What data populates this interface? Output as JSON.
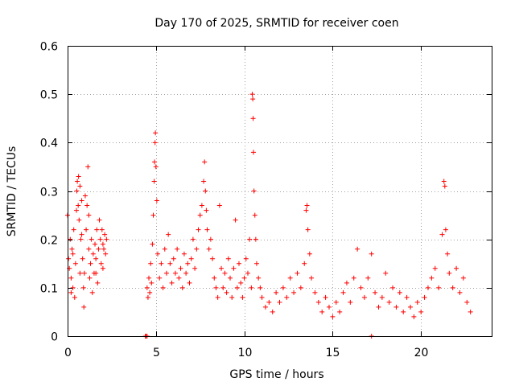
{
  "chart_data": {
    "type": "scatter",
    "title": "Day 170 of 2025, SRMTID for receiver coen",
    "xlabel": "GPS time / hours",
    "ylabel": "SRMTID / TECUs",
    "xlim": [
      0,
      24
    ],
    "ylim": [
      0,
      0.6
    ],
    "x_ticks": [
      0,
      5,
      10,
      15,
      20
    ],
    "x_tick_labels": [
      "0",
      "5",
      "10",
      "15",
      "20"
    ],
    "y_ticks": [
      0,
      0.1,
      0.2,
      0.3,
      0.4,
      0.5,
      0.6
    ],
    "y_tick_labels": [
      "0",
      "0.1",
      "0.2",
      "0.3",
      "0.4",
      "0.5",
      "0.6"
    ],
    "grid": true,
    "marker": "+",
    "color": "#ff0000",
    "series": [
      {
        "name": "SRMTID",
        "points": [
          [
            0.0,
            0.25
          ],
          [
            0.05,
            0.16
          ],
          [
            0.1,
            0.14
          ],
          [
            0.15,
            0.2
          ],
          [
            0.2,
            0.12
          ],
          [
            0.25,
            0.18
          ],
          [
            0.3,
            0.1
          ],
          [
            0.35,
            0.22
          ],
          [
            0.4,
            0.08
          ],
          [
            0.45,
            0.15
          ],
          [
            0.5,
            0.26
          ],
          [
            0.52,
            0.3
          ],
          [
            0.55,
            0.32
          ],
          [
            0.6,
            0.27
          ],
          [
            0.62,
            0.33
          ],
          [
            0.65,
            0.24
          ],
          [
            0.7,
            0.31
          ],
          [
            0.75,
            0.2
          ],
          [
            0.8,
            0.28
          ],
          [
            0.85,
            0.16
          ],
          [
            0.9,
            0.1
          ],
          [
            0.92,
            0.06
          ],
          [
            0.95,
            0.13
          ],
          [
            1.0,
            0.29
          ],
          [
            1.05,
            0.22
          ],
          [
            1.1,
            0.27
          ],
          [
            1.15,
            0.35
          ],
          [
            1.2,
            0.18
          ],
          [
            1.25,
            0.12
          ],
          [
            1.3,
            0.15
          ],
          [
            1.35,
            0.2
          ],
          [
            1.4,
            0.09
          ],
          [
            1.45,
            0.17
          ],
          [
            1.5,
            0.13
          ],
          [
            1.55,
            0.19
          ],
          [
            1.6,
            0.16
          ],
          [
            1.65,
            0.22
          ],
          [
            1.7,
            0.11
          ],
          [
            1.75,
            0.18
          ],
          [
            1.8,
            0.24
          ],
          [
            1.85,
            0.2
          ],
          [
            1.9,
            0.15
          ],
          [
            1.95,
            0.22
          ],
          [
            2.0,
            0.19
          ],
          [
            2.05,
            0.18
          ],
          [
            2.1,
            0.21
          ],
          [
            2.15,
            0.17
          ],
          [
            2.2,
            0.2
          ],
          [
            0.3,
            0.17
          ],
          [
            0.7,
            0.13
          ],
          [
            1.2,
            0.25
          ],
          [
            1.6,
            0.13
          ],
          [
            2.0,
            0.14
          ],
          [
            0.2,
            0.09
          ],
          [
            0.8,
            0.21
          ],
          [
            4.4,
            0.0
          ],
          [
            4.45,
            0.0
          ],
          [
            4.5,
            0.0
          ],
          [
            4.5,
            0.1
          ],
          [
            4.55,
            0.08
          ],
          [
            4.6,
            0.12
          ],
          [
            4.65,
            0.09
          ],
          [
            4.7,
            0.15
          ],
          [
            4.75,
            0.11
          ],
          [
            4.8,
            0.19
          ],
          [
            4.85,
            0.25
          ],
          [
            4.9,
            0.32
          ],
          [
            4.92,
            0.36
          ],
          [
            4.95,
            0.4
          ],
          [
            4.97,
            0.42
          ],
          [
            5.0,
            0.35
          ],
          [
            5.05,
            0.28
          ],
          [
            5.1,
            0.17
          ],
          [
            5.2,
            0.12
          ],
          [
            5.3,
            0.15
          ],
          [
            5.4,
            0.1
          ],
          [
            5.5,
            0.18
          ],
          [
            5.6,
            0.13
          ],
          [
            5.7,
            0.21
          ],
          [
            5.8,
            0.15
          ],
          [
            5.9,
            0.11
          ],
          [
            6.0,
            0.16
          ],
          [
            6.1,
            0.13
          ],
          [
            6.2,
            0.18
          ],
          [
            6.3,
            0.12
          ],
          [
            6.4,
            0.14
          ],
          [
            6.5,
            0.1
          ],
          [
            6.6,
            0.17
          ],
          [
            6.7,
            0.13
          ],
          [
            6.8,
            0.15
          ],
          [
            6.9,
            0.11
          ],
          [
            7.0,
            0.16
          ],
          [
            7.1,
            0.2
          ],
          [
            7.2,
            0.14
          ],
          [
            7.3,
            0.18
          ],
          [
            7.4,
            0.22
          ],
          [
            7.5,
            0.25
          ],
          [
            7.6,
            0.27
          ],
          [
            7.7,
            0.32
          ],
          [
            7.75,
            0.36
          ],
          [
            7.8,
            0.3
          ],
          [
            7.85,
            0.26
          ],
          [
            7.9,
            0.22
          ],
          [
            8.0,
            0.18
          ],
          [
            8.1,
            0.2
          ],
          [
            8.2,
            0.16
          ],
          [
            8.3,
            0.12
          ],
          [
            8.4,
            0.1
          ],
          [
            8.5,
            0.08
          ],
          [
            8.6,
            0.27
          ],
          [
            8.7,
            0.14
          ],
          [
            8.8,
            0.1
          ],
          [
            8.9,
            0.13
          ],
          [
            9.0,
            0.09
          ],
          [
            9.1,
            0.16
          ],
          [
            9.2,
            0.12
          ],
          [
            9.3,
            0.08
          ],
          [
            9.4,
            0.14
          ],
          [
            9.5,
            0.24
          ],
          [
            9.6,
            0.1
          ],
          [
            9.7,
            0.15
          ],
          [
            9.8,
            0.11
          ],
          [
            9.9,
            0.08
          ],
          [
            10.0,
            0.12
          ],
          [
            10.1,
            0.16
          ],
          [
            10.2,
            0.13
          ],
          [
            10.3,
            0.2
          ],
          [
            10.4,
            0.1
          ],
          [
            10.45,
            0.5
          ],
          [
            10.48,
            0.49
          ],
          [
            10.5,
            0.45
          ],
          [
            10.52,
            0.38
          ],
          [
            10.55,
            0.3
          ],
          [
            10.6,
            0.25
          ],
          [
            10.65,
            0.2
          ],
          [
            10.7,
            0.15
          ],
          [
            10.8,
            0.12
          ],
          [
            10.9,
            0.1
          ],
          [
            11.0,
            0.08
          ],
          [
            11.2,
            0.06
          ],
          [
            11.4,
            0.07
          ],
          [
            11.6,
            0.05
          ],
          [
            11.8,
            0.09
          ],
          [
            12.0,
            0.07
          ],
          [
            12.2,
            0.1
          ],
          [
            12.4,
            0.08
          ],
          [
            12.6,
            0.12
          ],
          [
            12.8,
            0.09
          ],
          [
            13.0,
            0.13
          ],
          [
            13.2,
            0.1
          ],
          [
            13.4,
            0.15
          ],
          [
            13.5,
            0.26
          ],
          [
            13.55,
            0.27
          ],
          [
            13.6,
            0.22
          ],
          [
            13.7,
            0.17
          ],
          [
            13.8,
            0.12
          ],
          [
            14.0,
            0.09
          ],
          [
            14.2,
            0.07
          ],
          [
            14.4,
            0.05
          ],
          [
            14.6,
            0.08
          ],
          [
            14.8,
            0.06
          ],
          [
            15.0,
            0.04
          ],
          [
            15.2,
            0.07
          ],
          [
            15.4,
            0.05
          ],
          [
            15.6,
            0.09
          ],
          [
            15.8,
            0.11
          ],
          [
            16.0,
            0.07
          ],
          [
            16.2,
            0.12
          ],
          [
            16.4,
            0.18
          ],
          [
            16.6,
            0.1
          ],
          [
            16.8,
            0.08
          ],
          [
            17.0,
            0.12
          ],
          [
            17.2,
            0.17
          ],
          [
            17.4,
            0.09
          ],
          [
            17.6,
            0.06
          ],
          [
            17.8,
            0.08
          ],
          [
            18.0,
            0.13
          ],
          [
            18.2,
            0.07
          ],
          [
            18.4,
            0.1
          ],
          [
            18.6,
            0.06
          ],
          [
            18.8,
            0.09
          ],
          [
            19.0,
            0.05
          ],
          [
            19.2,
            0.08
          ],
          [
            19.4,
            0.06
          ],
          [
            19.6,
            0.04
          ],
          [
            19.8,
            0.07
          ],
          [
            20.0,
            0.05
          ],
          [
            20.2,
            0.08
          ],
          [
            20.4,
            0.1
          ],
          [
            20.6,
            0.12
          ],
          [
            20.8,
            0.14
          ],
          [
            21.0,
            0.1
          ],
          [
            21.2,
            0.21
          ],
          [
            21.3,
            0.32
          ],
          [
            21.35,
            0.31
          ],
          [
            21.4,
            0.22
          ],
          [
            21.5,
            0.17
          ],
          [
            21.6,
            0.13
          ],
          [
            21.8,
            0.1
          ],
          [
            22.0,
            0.14
          ],
          [
            22.2,
            0.09
          ],
          [
            22.4,
            0.12
          ],
          [
            22.6,
            0.07
          ],
          [
            22.8,
            0.05
          ],
          [
            17.2,
            0.0
          ]
        ]
      }
    ]
  }
}
